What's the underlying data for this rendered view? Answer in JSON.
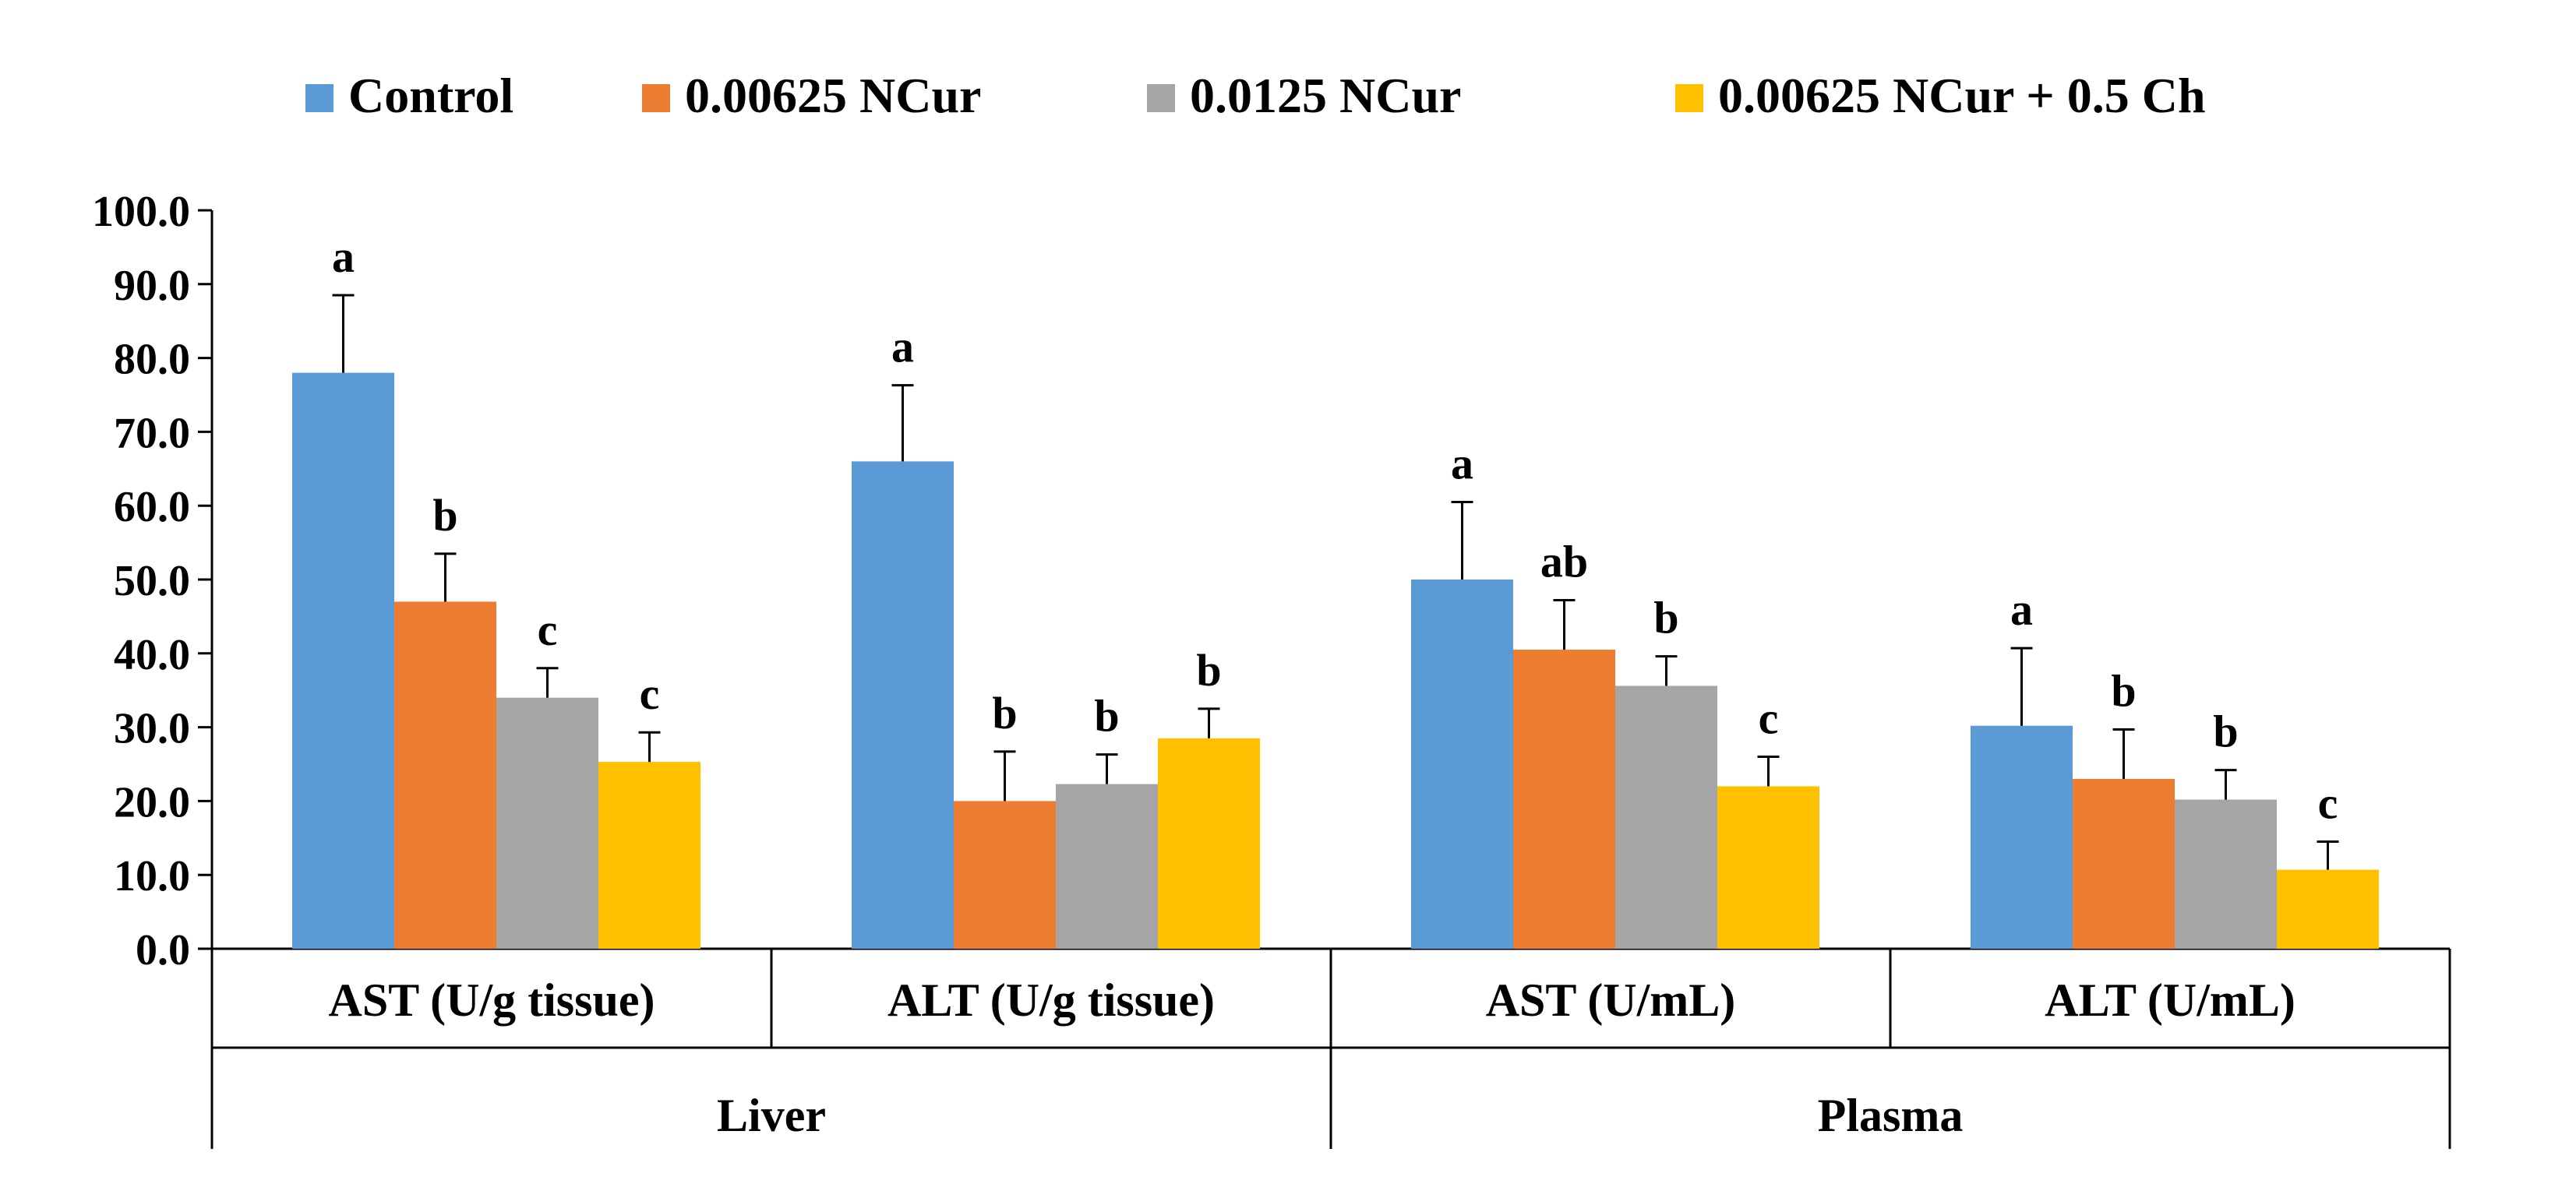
{
  "chart_data": {
    "type": "bar",
    "title": "",
    "xlabel": "",
    "ylabel": "",
    "ylim": [
      0,
      100
    ],
    "yticks": [
      0,
      10,
      20,
      30,
      40,
      50,
      60,
      70,
      80,
      90,
      100
    ],
    "ytick_labels": [
      "0.0",
      "10.0",
      "20.0",
      "30.0",
      "40.0",
      "50.0",
      "60.0",
      "70.0",
      "80.0",
      "90.0",
      "100.0"
    ],
    "grid": false,
    "legend_position": "top",
    "categories": [
      "AST (U/g tissue)",
      "ALT (U/g tissue)",
      "AST (U/mL)",
      "ALT (U/mL)"
    ],
    "groups": [
      {
        "label": "Liver",
        "categories": [
          "AST (U/g tissue)",
          "ALT (U/g tissue)"
        ]
      },
      {
        "label": "Plasma",
        "categories": [
          "AST (U/mL)",
          "ALT (U/mL)"
        ]
      }
    ],
    "series": [
      {
        "name": "Control",
        "color": "#5B9BD5",
        "values": [
          78.0,
          66.0,
          50.0,
          30.2
        ],
        "errors": [
          10.5,
          10.3,
          10.5,
          10.5
        ],
        "letters": [
          "a",
          "a",
          "a",
          "a"
        ]
      },
      {
        "name": "0.00625 NCur",
        "color": "#ED7D31",
        "values": [
          47.0,
          20.0,
          40.5,
          23.0
        ],
        "errors": [
          6.5,
          6.7,
          6.7,
          6.7
        ],
        "letters": [
          "b",
          "b",
          "ab",
          "b"
        ]
      },
      {
        "name": "0.0125 NCur",
        "color": "#A5A5A5",
        "values": [
          34.0,
          22.3,
          35.6,
          20.2
        ],
        "errors": [
          4.0,
          4.0,
          4.0,
          4.0
        ],
        "letters": [
          "c",
          "b",
          "b",
          "b"
        ]
      },
      {
        "name": "0.00625 NCur + 0.5 Ch",
        "color": "#FFC000",
        "values": [
          25.3,
          28.5,
          22.0,
          10.7
        ],
        "errors": [
          4.0,
          4.0,
          4.0,
          3.8
        ],
        "letters": [
          "c",
          "b",
          "c",
          "c"
        ]
      }
    ]
  }
}
